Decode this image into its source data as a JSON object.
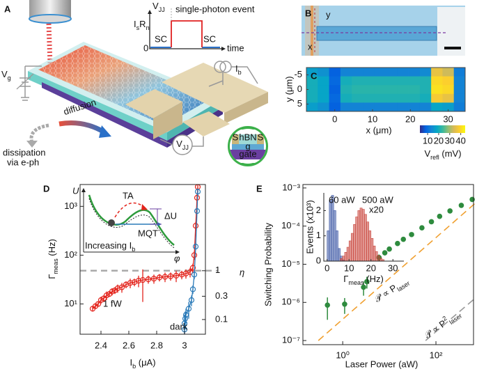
{
  "figure": {
    "a": {
      "letter": "A",
      "trace_v": {
        "main": "V",
        "sub": "JJ"
      },
      "trace_isrn": {
        "main": "I",
        "sub": "s",
        "mid": "R",
        "sub2": "n"
      },
      "event": "single-photon event",
      "sc_left": "SC",
      "sc_right": "SC",
      "zero": "0",
      "time": "time",
      "vg": {
        "main": "V",
        "sub": "g"
      },
      "ib": {
        "main": "I",
        "sub": "b"
      },
      "diffusion": "diffusion",
      "dissipation": "dissipation",
      "via": "via e-ph",
      "vjj": {
        "main": "V",
        "sub": "JJ"
      },
      "s_left": "S",
      "hbn": "hBN",
      "s_right": "S",
      "g": "g",
      "gate": "gate"
    },
    "b": {
      "letter": "B",
      "y": "y",
      "x": "x"
    },
    "d_inset": {
      "u": "U",
      "ta": "TA",
      "du": "ΔU",
      "mqt": "MQT",
      "increasing": {
        "main": "Increasing I",
        "sub": "b"
      },
      "phi": "φ"
    }
  },
  "chart_data": [
    {
      "type": "heatmap",
      "panel": "C",
      "xlabel": "x (μm)",
      "ylabel": "y (μm)",
      "x": [
        -6,
        -3,
        0,
        3,
        6,
        9,
        12,
        15,
        18,
        21,
        24,
        27,
        30,
        33
      ],
      "y": [
        -6,
        -3,
        0,
        3,
        6
      ],
      "z": [
        [
          17,
          15,
          8,
          13,
          13,
          13,
          13,
          13,
          13,
          13,
          14,
          36,
          33,
          12
        ],
        [
          20,
          18,
          9,
          20,
          21,
          21,
          21,
          21,
          21,
          21,
          21,
          40,
          39,
          13
        ],
        [
          20,
          18,
          8,
          21,
          22,
          22,
          22,
          22,
          22,
          22,
          21,
          41,
          40,
          13
        ],
        [
          20,
          18,
          9,
          20,
          21,
          21,
          21,
          21,
          21,
          21,
          20,
          38,
          36,
          13
        ],
        [
          17,
          15,
          8,
          13,
          13,
          13,
          13,
          13,
          13,
          13,
          13,
          18,
          17,
          12
        ]
      ],
      "xlim": [
        -7.5,
        34.5
      ],
      "ylim": [
        7.5,
        -7.5
      ],
      "xticks": [
        0,
        10,
        20,
        30
      ],
      "yticks": [
        -5,
        0,
        5
      ],
      "colormap": "parula",
      "colorbar": {
        "label": {
          "main": "V",
          "sub": "refl",
          "rest": " (mV)"
        },
        "lim": [
          3,
          44
        ],
        "ticks": [
          10,
          20,
          30,
          40
        ]
      }
    },
    {
      "type": "line",
      "panel": "D",
      "xlabel": {
        "main": "I",
        "sub": "b",
        "rest": " (μA)"
      },
      "ylabel": {
        "main": "Γ",
        "sub": "meas",
        "rest": " (Hz)"
      },
      "y2label": "η",
      "xlim": [
        2.25,
        3.15
      ],
      "ylim": [
        2.4,
        2800
      ],
      "ylog": true,
      "y2lim": [
        0.05,
        58.33
      ],
      "y2log": true,
      "xticks": [
        2.4,
        2.6,
        2.8,
        3
      ],
      "yticks": [
        {
          "value": 10,
          "label": "10¹"
        },
        {
          "value": 100,
          "label": "10²"
        },
        {
          "value": 1000,
          "label": "10³"
        }
      ],
      "y2ticks": [
        1,
        0.3,
        0.1
      ],
      "reference_line": 48,
      "series": [
        {
          "name": "1 fW",
          "color": "#e3241c",
          "x": [
            2.34,
            2.36,
            2.38,
            2.4,
            2.42,
            2.44,
            2.46,
            2.48,
            2.5,
            2.52,
            2.55,
            2.58,
            2.61,
            2.64,
            2.67,
            2.7,
            2.74,
            2.78,
            2.82,
            2.86,
            2.9,
            2.94,
            2.98,
            3.01,
            3.04,
            3.06,
            3.07,
            3.08,
            3.09,
            3.095
          ],
          "values": [
            8,
            9,
            10,
            12,
            13,
            15,
            16,
            18,
            19,
            21,
            22,
            25,
            27,
            28,
            30,
            31,
            32,
            33,
            35,
            36,
            37,
            38,
            40,
            42,
            45,
            55,
            100,
            400,
            1500,
            2500
          ],
          "errors": [
            1,
            1,
            1,
            2,
            2,
            3,
            2,
            3,
            3,
            4,
            5,
            4,
            6,
            5,
            8,
            20,
            6,
            7,
            6,
            8,
            7,
            10,
            8,
            9,
            10,
            12,
            20,
            80,
            300,
            500
          ]
        },
        {
          "name": "dark",
          "color": "#2a7ab8",
          "x": [
            3.0,
            3.0,
            3.005,
            3.01,
            3.03,
            3.05,
            3.06,
            3.07,
            3.08,
            3.09,
            3.095
          ],
          "values": [
            3,
            4,
            5,
            6,
            8,
            12,
            20,
            40,
            150,
            800,
            2000
          ],
          "errors": [
            1,
            2,
            2,
            2,
            3,
            3,
            4,
            8,
            20,
            100,
            300
          ]
        }
      ]
    },
    {
      "type": "scatter",
      "panel": "E",
      "xlabel": "Laser Power (aW)",
      "ylabel": "Switching Probability",
      "xlim": [
        0.14,
        640
      ],
      "xlog": true,
      "ylim": [
        7.8e-08,
        0.00123
      ],
      "ylog": true,
      "xticks": [
        {
          "value": 1,
          "label": "10⁰"
        },
        {
          "value": 100,
          "label": "10²"
        }
      ],
      "yticks": [
        {
          "value": 1e-07,
          "label": "10⁻⁷"
        },
        {
          "value": 1e-06,
          "label": "10⁻⁶"
        },
        {
          "value": 1e-05,
          "label": "10⁻⁵"
        },
        {
          "value": 0.0001,
          "label": "10⁻⁴"
        },
        {
          "value": 0.001,
          "label": "10⁻³"
        }
      ],
      "color": "#2e8b3e",
      "x": [
        0.47,
        1.1,
        2.8,
        3.3,
        6,
        8,
        10,
        15,
        20,
        30,
        50,
        80,
        120,
        200,
        350,
        600
      ],
      "values": [
        8.5e-07,
        9e-07,
        2.5e-06,
        3.5e-06,
        1.5e-05,
        2e-05,
        2.5e-05,
        3.5e-05,
        4.5e-05,
        6e-05,
        9e-05,
        0.00013,
        0.00018,
        0.00025,
        0.00035,
        0.0005
      ],
      "errors": [
        5e-07,
        4e-07,
        1e-06,
        1.2e-06,
        3e-06,
        3e-06,
        3e-06,
        3e-06,
        4e-06,
        5e-06,
        6e-06,
        8e-06,
        1e-05,
        1.2e-05,
        1.5e-05,
        2e-05
      ],
      "fits": [
        {
          "label": {
            "main": "𝒫 ∝ P",
            "sub": "laser"
          },
          "color": "#f0a030",
          "x": [
            0.3,
            700
          ],
          "values": [
            1e-07,
            0.0004
          ]
        },
        {
          "label": {
            "main": "𝒫 ∝ P",
            "sup": "2",
            "sub": "laser"
          },
          "color": "#999999",
          "x": [
            60,
            700
          ],
          "values": [
            1e-07,
            1.3e-06
          ]
        }
      ],
      "inset": {
        "type": "histogram",
        "xlabel": {
          "main": "Γ",
          "sub": "meas",
          "rest": " (Hz)"
        },
        "ylabel": "Events (x10³)",
        "xlim": [
          -1.5,
          35
        ],
        "ylim": [
          0,
          2.7
        ],
        "xticks": [
          0,
          10,
          20,
          30
        ],
        "yticks": [
          0,
          1,
          2
        ],
        "series": [
          {
            "name": "60 aW",
            "color": "#3a55a4",
            "bins": [
              0,
              1,
              2,
              3,
              4,
              5,
              6,
              7,
              8
            ],
            "values": [
              1.2,
              2.4,
              2.6,
              2.0,
              1.2,
              0.5,
              0.2,
              0.05
            ]
          },
          {
            "name": "500 aW",
            "scale_label": "x20",
            "color": "#c8433a",
            "bins": [
              6,
              7,
              8,
              9,
              10,
              11,
              12,
              13,
              14,
              15,
              16,
              17,
              18,
              19,
              20,
              21,
              22,
              23,
              24,
              25,
              26
            ],
            "values": [
              0.1,
              0.2,
              0.35,
              0.55,
              0.8,
              1.1,
              1.45,
              1.75,
              2.0,
              2.1,
              2.05,
              1.85,
              1.55,
              1.2,
              0.9,
              0.6,
              0.38,
              0.22,
              0.12,
              0.06
            ]
          }
        ]
      }
    }
  ]
}
